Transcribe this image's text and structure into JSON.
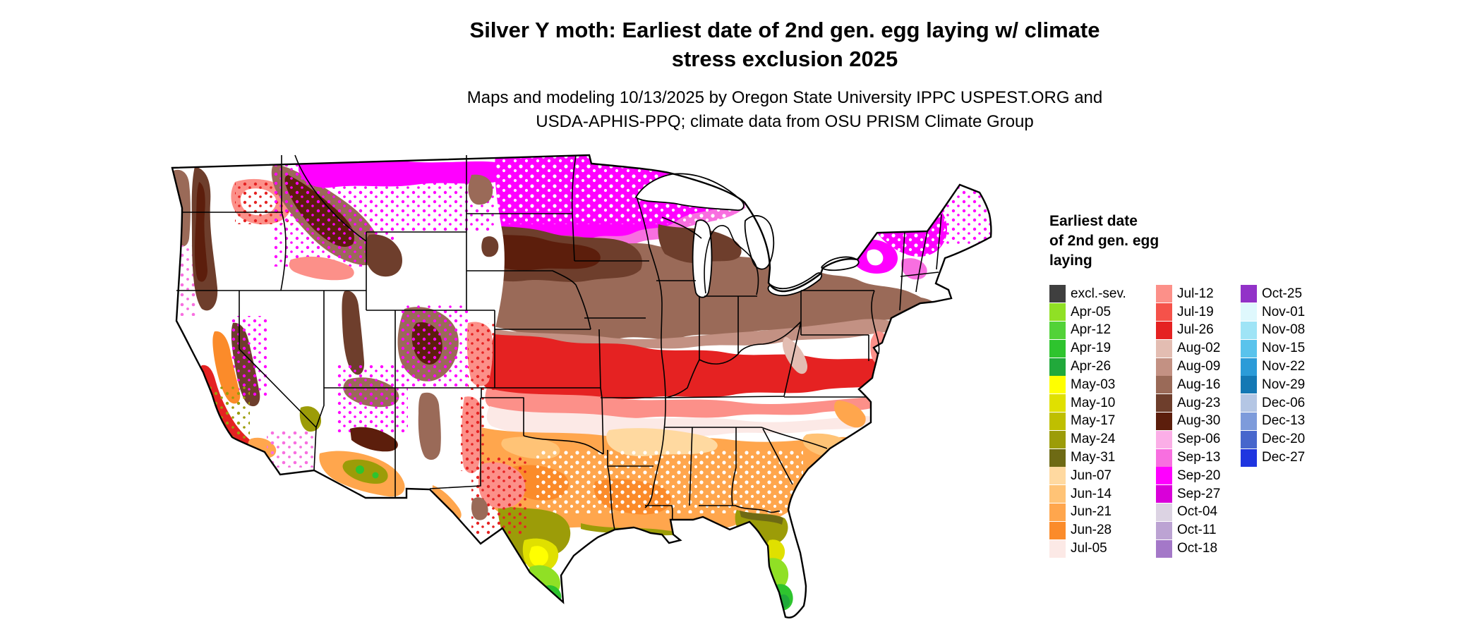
{
  "title": {
    "line1": "Silver Y moth: Earliest date of 2nd gen. egg laying w/ climate",
    "line2": "stress exclusion 2025"
  },
  "subtitle": {
    "line1": "Maps and modeling 10/13/2025 by Oregon State University IPPC USPEST.ORG and",
    "line2": "USDA-APHIS-PPQ; climate data from OSU PRISM Climate Group"
  },
  "legend": {
    "title_lines": [
      "Earliest date",
      "of 2nd gen. egg",
      "laying"
    ],
    "columns": [
      [
        {
          "label": "excl.-sev.",
          "color": "#3F3F3F"
        },
        {
          "label": "Apr-05",
          "color": "#90E025"
        },
        {
          "label": "Apr-12",
          "color": "#52D238"
        },
        {
          "label": "Apr-19",
          "color": "#2EC42E"
        },
        {
          "label": "Apr-26",
          "color": "#21A93B"
        },
        {
          "label": "May-03",
          "color": "#FFFF00"
        },
        {
          "label": "May-10",
          "color": "#E0E000"
        },
        {
          "label": "May-17",
          "color": "#BFBF00"
        },
        {
          "label": "May-24",
          "color": "#9C9C08"
        },
        {
          "label": "May-31",
          "color": "#6E6A14"
        },
        {
          "label": "Jun-07",
          "color": "#FFD9A0"
        },
        {
          "label": "Jun-14",
          "color": "#FFC376"
        },
        {
          "label": "Jun-21",
          "color": "#FFA64D"
        },
        {
          "label": "Jun-28",
          "color": "#FB8B2A"
        },
        {
          "label": "Jul-05",
          "color": "#FCE9E6"
        }
      ],
      [
        {
          "label": "Jul-12",
          "color": "#FC9089"
        },
        {
          "label": "Jul-19",
          "color": "#F5524A"
        },
        {
          "label": "Jul-26",
          "color": "#E52222"
        },
        {
          "label": "Aug-02",
          "color": "#E3BDB2"
        },
        {
          "label": "Aug-09",
          "color": "#C39183"
        },
        {
          "label": "Aug-16",
          "color": "#9A6A58"
        },
        {
          "label": "Aug-23",
          "color": "#6E3E2C"
        },
        {
          "label": "Aug-30",
          "color": "#5C1E0C"
        },
        {
          "label": "Sep-06",
          "color": "#FBAEE7"
        },
        {
          "label": "Sep-13",
          "color": "#F86FE0"
        },
        {
          "label": "Sep-20",
          "color": "#FF00FF"
        },
        {
          "label": "Sep-27",
          "color": "#D900D9"
        },
        {
          "label": "Oct-04",
          "color": "#DCD3E3"
        },
        {
          "label": "Oct-11",
          "color": "#BCA3D3"
        },
        {
          "label": "Oct-18",
          "color": "#A478C8"
        }
      ],
      [
        {
          "label": "Oct-25",
          "color": "#9232C8"
        },
        {
          "label": "Nov-01",
          "color": "#DFF8FD"
        },
        {
          "label": "Nov-08",
          "color": "#9FE4F6"
        },
        {
          "label": "Nov-15",
          "color": "#59C3EC"
        },
        {
          "label": "Nov-22",
          "color": "#2B9BD8"
        },
        {
          "label": "Nov-29",
          "color": "#1478B4"
        },
        {
          "label": "Dec-06",
          "color": "#B4C6E4"
        },
        {
          "label": "Dec-13",
          "color": "#7D9BDB"
        },
        {
          "label": "Dec-20",
          "color": "#4766CC"
        },
        {
          "label": "Dec-27",
          "color": "#1F35E0"
        }
      ]
    ]
  },
  "palette": {
    "white": "#FFFFFF",
    "magenta": "#FF00FF",
    "pink": "#F86FE0",
    "pinkLight": "#FBAEE7",
    "brownDarkest": "#5C1E0C",
    "brownDark": "#6E3E2C",
    "brown": "#9A6A58",
    "brownLight": "#C39183",
    "brownPale": "#E3BDB2",
    "red": "#E52222",
    "redLight": "#F5524A",
    "salmon": "#FC9089",
    "pinkPale": "#FCE9E6",
    "orangeDeep": "#FB8B2A",
    "orange": "#FFA64D",
    "orangeLight": "#FFC376",
    "peach": "#FFD9A0",
    "oliveDark": "#6E6A14",
    "olive": "#9C9C08",
    "yellowDark": "#E0E000",
    "yellow": "#FFFF00",
    "greenDark": "#21A93B",
    "green": "#2EC42E",
    "chartreuse": "#90E025"
  }
}
